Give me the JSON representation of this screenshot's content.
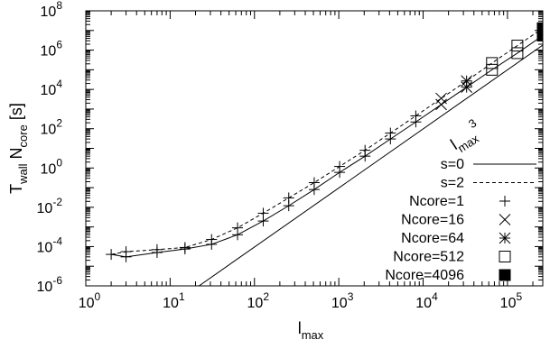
{
  "chart_data": {
    "type": "scatter",
    "xlabel": "l",
    "xlabel_sub": "max",
    "ylabel_parts": [
      {
        "text": "T",
        "sub": false
      },
      {
        "text": "wall",
        "sub": true
      },
      {
        "text": " N",
        "sub": false
      },
      {
        "text": "core",
        "sub": true
      },
      {
        "text": " [s]",
        "sub": false
      }
    ],
    "xscale": "log",
    "yscale": "log",
    "xlim": [
      1,
      262144
    ],
    "ylim": [
      1e-06,
      100000000.0
    ],
    "x_ticks": [
      {
        "value": 1,
        "base": "10",
        "exp": "0"
      },
      {
        "value": 10,
        "base": "10",
        "exp": "1"
      },
      {
        "value": 100,
        "base": "10",
        "exp": "2"
      },
      {
        "value": 1000,
        "base": "10",
        "exp": "3"
      },
      {
        "value": 10000,
        "base": "10",
        "exp": "4"
      },
      {
        "value": 100000,
        "base": "10",
        "exp": "5"
      }
    ],
    "y_ticks": [
      {
        "value": 1e-06,
        "base": "10",
        "exp": "-6"
      },
      {
        "value": 0.0001,
        "base": "10",
        "exp": "-4"
      },
      {
        "value": 0.01,
        "base": "10",
        "exp": "-2"
      },
      {
        "value": 1,
        "base": "10",
        "exp": "0"
      },
      {
        "value": 100,
        "base": "10",
        "exp": "2"
      },
      {
        "value": 10000,
        "base": "10",
        "exp": "4"
      },
      {
        "value": 1000000,
        "base": "10",
        "exp": "6"
      },
      {
        "value": 100000000,
        "base": "10",
        "exp": "8"
      }
    ],
    "annotation": {
      "base": "l",
      "sub": "max",
      "sup": "3",
      "x": 24000,
      "y": 8
    },
    "series": [
      {
        "name": "s=0",
        "kind": "line",
        "dash": false,
        "x": [
          2,
          3,
          7,
          15,
          31,
          63,
          127,
          255,
          511,
          1023,
          2047,
          4095,
          8191,
          16383,
          32767,
          65535,
          131071,
          262143
        ],
        "y": [
          4e-05,
          3e-05,
          5e-05,
          7.5e-05,
          0.00013,
          0.0004,
          0.002,
          0.012,
          0.08,
          0.6,
          4,
          30,
          220,
          1700,
          13000.0,
          100000.0,
          700000.0,
          5500000.0
        ]
      },
      {
        "name": "s=0",
        "kind": "line-cube",
        "dash": false,
        "x": [
          22,
          262143
        ],
        "y": [
          1e-06,
          1800000.0
        ]
      },
      {
        "name": "s=2",
        "kind": "line",
        "dash": true,
        "x": [
          2,
          3,
          7,
          15,
          31,
          63,
          127,
          255,
          511,
          1023,
          2047,
          4095,
          8191,
          16383,
          32767,
          65535,
          131071,
          262143
        ],
        "y": [
          4e-05,
          5.5e-05,
          7e-05,
          9e-05,
          0.00023,
          0.0009,
          0.005,
          0.03,
          0.18,
          1.2,
          8,
          60,
          450,
          3500,
          27000.0,
          220000.0,
          1700000.0,
          13000000.0
        ]
      },
      {
        "name": "Ncore=1",
        "kind": "marker",
        "marker": "plus",
        "x": [
          2,
          3,
          3,
          7,
          7,
          15,
          15,
          31,
          31,
          63,
          63,
          127,
          127,
          255,
          255,
          511,
          511,
          1023,
          1023,
          2047,
          2047,
          4095,
          4095,
          8191,
          8191
        ],
        "y": [
          4e-05,
          3e-05,
          5.5e-05,
          5e-05,
          7e-05,
          7.5e-05,
          9e-05,
          0.00013,
          0.00023,
          0.0004,
          0.0009,
          0.002,
          0.005,
          0.012,
          0.03,
          0.08,
          0.18,
          0.6,
          1.2,
          4,
          8,
          30,
          60,
          220,
          450
        ]
      },
      {
        "name": "Ncore=16",
        "kind": "marker",
        "marker": "x",
        "x": [
          16383,
          16383
        ],
        "y": [
          1700,
          3500
        ]
      },
      {
        "name": "Ncore=64",
        "kind": "marker",
        "marker": "star",
        "x": [
          32767,
          32767
        ],
        "y": [
          13000.0,
          27000.0
        ]
      },
      {
        "name": "Ncore=512",
        "kind": "marker",
        "marker": "square",
        "x": [
          65535,
          65535,
          131071,
          131071
        ],
        "y": [
          100000.0,
          220000.0,
          700000.0,
          1700000.0
        ]
      },
      {
        "name": "Ncore=4096",
        "kind": "marker",
        "marker": "filled-square",
        "x": [
          262143,
          262143
        ],
        "y": [
          5500000.0,
          13000000.0
        ]
      }
    ],
    "legend": [
      {
        "label": "s=0",
        "kind": "line",
        "dash": false
      },
      {
        "label": "s=2",
        "kind": "line",
        "dash": true
      },
      {
        "label": "Ncore=1",
        "kind": "marker",
        "marker": "plus"
      },
      {
        "label": "Ncore=16",
        "kind": "marker",
        "marker": "x"
      },
      {
        "label": "Ncore=64",
        "kind": "marker",
        "marker": "star"
      },
      {
        "label": "Ncore=512",
        "kind": "marker",
        "marker": "square"
      },
      {
        "label": "Ncore=4096",
        "kind": "marker",
        "marker": "filled-square"
      }
    ],
    "legend_position": "bottom-right",
    "grid": false
  }
}
